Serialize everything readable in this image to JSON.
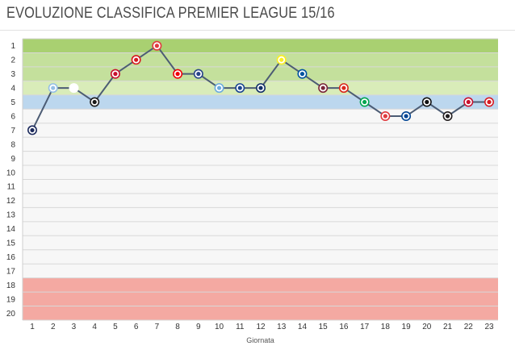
{
  "chart_data": {
    "type": "line",
    "title": "EVOLUZIONE CLASSIFICA PREMIER LEAGUE 15/16",
    "xlabel": "Giornata",
    "ylabel": "",
    "x": [
      1,
      2,
      3,
      4,
      5,
      6,
      7,
      8,
      9,
      10,
      11,
      12,
      13,
      14,
      15,
      16,
      17,
      18,
      19,
      20,
      21,
      22,
      23
    ],
    "series": [
      {
        "values": [
          7,
          4,
          4,
          5,
          3,
          2,
          1,
          3,
          3,
          4,
          4,
          4,
          2,
          3,
          4,
          4,
          5,
          6,
          6,
          5,
          6,
          5,
          5
        ],
        "marker_colors": [
          "#1c2a5c",
          "#95bfe5",
          "#ffffff",
          "#1a1a1a",
          "#c8102e",
          "#d71920",
          "#e03a3e",
          "#ef0107",
          "#274488",
          "#6cabdd",
          "#1b458f",
          "#122f67",
          "#fbee23",
          "#0053a0",
          "#7a263a",
          "#da291c",
          "#00a650",
          "#e03a3e",
          "#034694",
          "#121212",
          "#241f20",
          "#c8102e",
          "#d71920"
        ]
      }
    ],
    "ylim": [
      1,
      20
    ],
    "y_ticks": [
      1,
      2,
      3,
      4,
      5,
      6,
      7,
      8,
      9,
      10,
      11,
      12,
      13,
      14,
      15,
      16,
      17,
      18,
      19,
      20
    ],
    "y_inverted": true,
    "grid": true,
    "bands": [
      {
        "from": 1,
        "to": 1,
        "color": "#a9d071"
      },
      {
        "from": 2,
        "to": 3,
        "color": "#c4e09c"
      },
      {
        "from": 4,
        "to": 4,
        "color": "#d9ecb9"
      },
      {
        "from": 5,
        "to": 5,
        "color": "#bcd7ee"
      },
      {
        "from": 18,
        "to": 20,
        "color": "#f4a9a2"
      }
    ],
    "line_color": "#4c5c74"
  }
}
